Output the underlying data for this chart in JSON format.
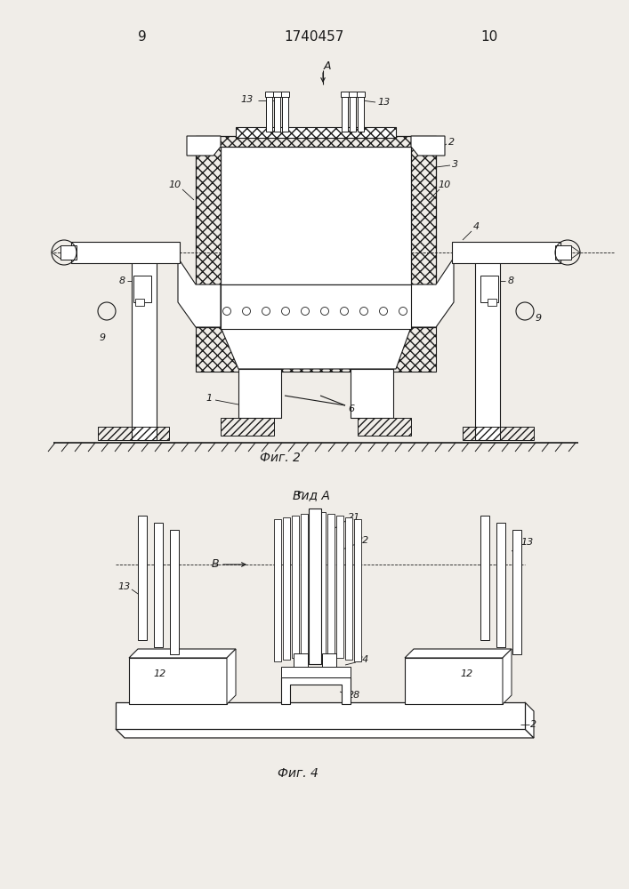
{
  "bg_color": "#f0ede8",
  "line_color": "#1a1a1a",
  "title_text": "1740457",
  "page_left": "9",
  "page_right": "10",
  "fig2_label": "Фиг. 2",
  "fig4_label": "Фиг. 4",
  "vid_a_label": "Вид A",
  "arrow_a_label": "A",
  "arrow_b_label": "B"
}
